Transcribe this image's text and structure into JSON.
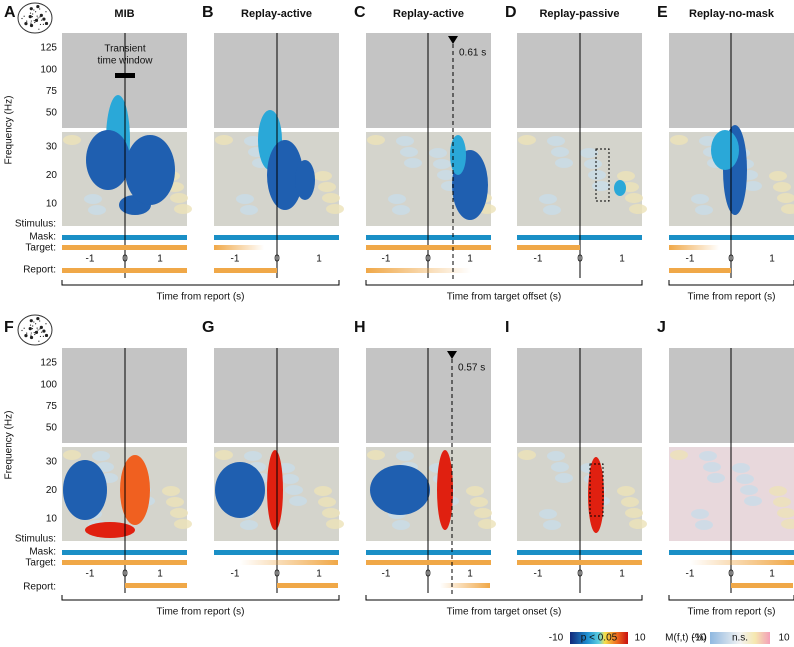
{
  "ylabel": "Frequency (Hz)",
  "rows": [
    {
      "panels": [
        {
          "letter": "A",
          "title": "MIB",
          "xticks": [
            "-1",
            "0",
            "1"
          ]
        },
        {
          "letter": "B",
          "title": "Replay-active",
          "xticks": [
            "-1",
            "0",
            "1"
          ]
        },
        {
          "letter": "C",
          "title": "Replay-active",
          "xticks": [
            "-1",
            "0",
            "1"
          ]
        },
        {
          "letter": "D",
          "title": "Replay-passive",
          "xticks": [
            "-1",
            "0",
            "1"
          ]
        },
        {
          "letter": "E",
          "title": "Replay-no-mask",
          "xticks": [
            "-1",
            "0",
            "1"
          ]
        }
      ],
      "xlabels": [
        "Time from report (s)",
        "Time from target offset (s)",
        "Time from report (s)"
      ],
      "yticks_high": [
        "125",
        "100",
        "75",
        "50"
      ],
      "yticks_low": [
        "30",
        "20",
        "10"
      ],
      "stream_labels": [
        "Stimulus:",
        "Mask:",
        "Target:",
        "Report:"
      ],
      "annotations": [
        "Transient",
        "time window",
        "0.61 s"
      ]
    },
    {
      "panels": [
        {
          "letter": "F",
          "xticks": [
            "-1",
            "0",
            "1"
          ]
        },
        {
          "letter": "G",
          "xticks": [
            "-1",
            "0",
            "1"
          ]
        },
        {
          "letter": "H",
          "xticks": [
            "-1",
            "0",
            "1"
          ]
        },
        {
          "letter": "I",
          "xticks": [
            "-1",
            "0",
            "1"
          ]
        },
        {
          "letter": "J",
          "xticks": [
            "-1",
            "0",
            "1"
          ]
        }
      ],
      "xlabels": [
        "Time from report (s)",
        "Time from target onset (s)",
        "Time from report (s)"
      ],
      "yticks_high": [
        "125",
        "100",
        "75",
        "50"
      ],
      "yticks_low": [
        "30",
        "20",
        "10"
      ],
      "stream_labels": [
        "Stimulus:",
        "Mask:",
        "Target:",
        "Report:"
      ],
      "annotations": [
        "0.57 s"
      ]
    }
  ],
  "legend": {
    "sig_min": "-10",
    "sig_label": "p < 0.05",
    "sig_max": "10",
    "metric": "M(f,t) (%)",
    "ns_min": "-10",
    "ns_label": "n.s.",
    "ns_max": "10"
  }
}
